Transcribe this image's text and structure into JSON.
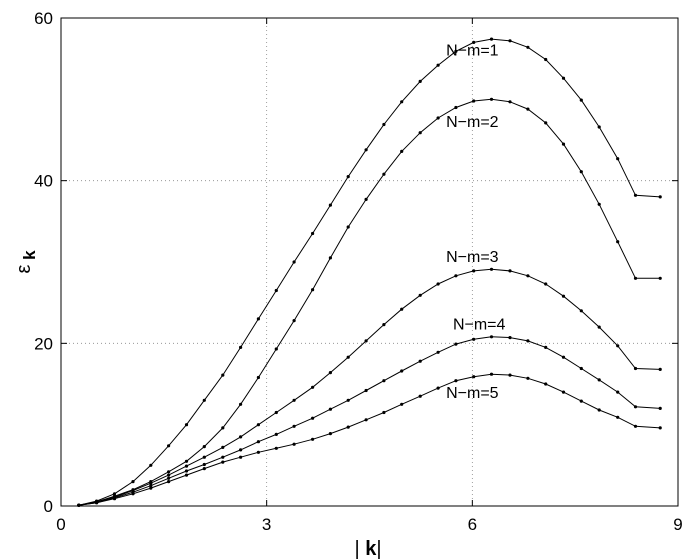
{
  "chart_data": {
    "type": "line",
    "xlabel": "| k|",
    "ylabel": "ε k",
    "xlim": [
      0,
      9
    ],
    "ylim": [
      0,
      60
    ],
    "xticks": [
      0,
      3,
      6,
      9
    ],
    "yticks": [
      0,
      20,
      40,
      60
    ],
    "grid": true,
    "marker": "dot",
    "x": [
      0.26,
      0.52,
      0.78,
      1.05,
      1.31,
      1.57,
      1.83,
      2.09,
      2.36,
      2.62,
      2.88,
      3.14,
      3.4,
      3.67,
      3.93,
      4.19,
      4.45,
      4.71,
      4.97,
      5.24,
      5.5,
      5.76,
      6.02,
      6.28,
      6.55,
      6.81,
      7.07,
      7.33,
      7.59,
      7.85,
      8.12,
      8.38,
      8.74
    ],
    "series": [
      {
        "name": "N−m=1",
        "values": [
          0.1,
          0.6,
          1.5,
          3.0,
          5.0,
          7.4,
          10.0,
          13.0,
          16.1,
          19.5,
          23.0,
          26.5,
          30.0,
          33.5,
          37.0,
          40.5,
          43.8,
          46.9,
          49.7,
          52.2,
          54.2,
          55.9,
          57.0,
          57.4,
          57.2,
          56.4,
          54.9,
          52.6,
          49.9,
          46.6,
          42.7,
          38.2,
          38.0
        ]
      },
      {
        "name": "N−m=2",
        "values": [
          0.1,
          0.5,
          1.2,
          2.0,
          3.0,
          4.2,
          5.5,
          7.3,
          9.6,
          12.5,
          15.8,
          19.3,
          22.8,
          26.6,
          30.5,
          34.3,
          37.7,
          40.8,
          43.6,
          45.9,
          47.7,
          49.0,
          49.8,
          50.0,
          49.7,
          48.8,
          47.1,
          44.5,
          41.1,
          37.1,
          32.5,
          28.0,
          28.0
        ]
      },
      {
        "name": "N−m=3",
        "values": [
          0.1,
          0.5,
          1.1,
          1.9,
          2.8,
          3.8,
          4.9,
          6.0,
          7.2,
          8.5,
          10.0,
          11.5,
          13.0,
          14.6,
          16.4,
          18.3,
          20.3,
          22.3,
          24.2,
          25.9,
          27.3,
          28.3,
          28.9,
          29.1,
          28.9,
          28.3,
          27.3,
          25.8,
          24.0,
          22.0,
          19.7,
          16.9,
          16.8
        ]
      },
      {
        "name": "N−m=4",
        "values": [
          0.1,
          0.4,
          1.0,
          1.7,
          2.5,
          3.4,
          4.3,
          5.1,
          6.0,
          6.9,
          7.9,
          8.8,
          9.8,
          10.8,
          11.9,
          13.0,
          14.2,
          15.4,
          16.6,
          17.8,
          18.9,
          19.9,
          20.5,
          20.8,
          20.7,
          20.3,
          19.5,
          18.3,
          16.9,
          15.5,
          14.0,
          12.2,
          12.0
        ]
      },
      {
        "name": "N−m=5",
        "values": [
          0.1,
          0.4,
          0.9,
          1.5,
          2.2,
          3.0,
          3.8,
          4.6,
          5.4,
          6.0,
          6.6,
          7.1,
          7.6,
          8.2,
          8.9,
          9.7,
          10.6,
          11.5,
          12.5,
          13.5,
          14.5,
          15.4,
          15.9,
          16.2,
          16.1,
          15.7,
          15.0,
          14.0,
          12.9,
          11.8,
          10.9,
          9.8,
          9.6
        ]
      }
    ],
    "annotations": [
      {
        "text": "N−m=1",
        "x": 6.0,
        "y": 55.4
      },
      {
        "text": "N−m=2",
        "x": 6.0,
        "y": 46.6
      },
      {
        "text": "N−m=3",
        "x": 6.0,
        "y": 30.0
      },
      {
        "text": "N−m=4",
        "x": 6.1,
        "y": 21.7
      },
      {
        "text": "N−m=5",
        "x": 6.0,
        "y": 13.3
      }
    ]
  }
}
